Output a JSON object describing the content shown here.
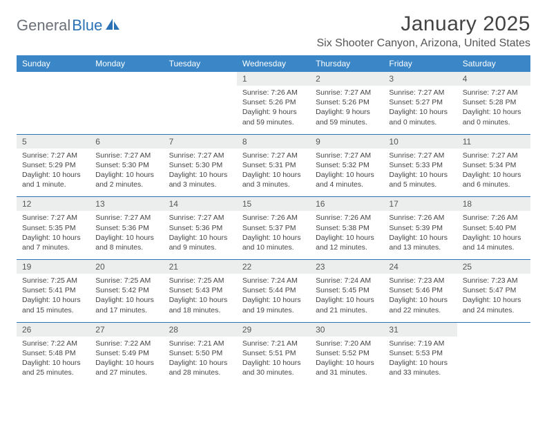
{
  "colors": {
    "header_bg": "#3b86c6",
    "header_text": "#ffffff",
    "daynum_bg": "#eceeee",
    "daynum_text": "#555555",
    "detail_text": "#444444",
    "week_separator": "#2a72b5",
    "logo_gray": "#6b7078",
    "logo_blue": "#2a72b5",
    "page_bg": "#ffffff"
  },
  "typography": {
    "title_fontsize": 30,
    "location_fontsize": 16,
    "dayhdr_fontsize": 12,
    "daynum_fontsize": 12,
    "detail_fontsize": 10.5
  },
  "logo": {
    "part1": "General",
    "part2": "Blue"
  },
  "title": "January 2025",
  "location": "Six Shooter Canyon, Arizona, United States",
  "day_headers": [
    "Sunday",
    "Monday",
    "Tuesday",
    "Wednesday",
    "Thursday",
    "Friday",
    "Saturday"
  ],
  "weeks": [
    [
      null,
      null,
      null,
      {
        "n": "1",
        "sr": "Sunrise: 7:26 AM",
        "ss": "Sunset: 5:26 PM",
        "d1": "Daylight: 9 hours",
        "d2": "and 59 minutes."
      },
      {
        "n": "2",
        "sr": "Sunrise: 7:27 AM",
        "ss": "Sunset: 5:26 PM",
        "d1": "Daylight: 9 hours",
        "d2": "and 59 minutes."
      },
      {
        "n": "3",
        "sr": "Sunrise: 7:27 AM",
        "ss": "Sunset: 5:27 PM",
        "d1": "Daylight: 10 hours",
        "d2": "and 0 minutes."
      },
      {
        "n": "4",
        "sr": "Sunrise: 7:27 AM",
        "ss": "Sunset: 5:28 PM",
        "d1": "Daylight: 10 hours",
        "d2": "and 0 minutes."
      }
    ],
    [
      {
        "n": "5",
        "sr": "Sunrise: 7:27 AM",
        "ss": "Sunset: 5:29 PM",
        "d1": "Daylight: 10 hours",
        "d2": "and 1 minute."
      },
      {
        "n": "6",
        "sr": "Sunrise: 7:27 AM",
        "ss": "Sunset: 5:30 PM",
        "d1": "Daylight: 10 hours",
        "d2": "and 2 minutes."
      },
      {
        "n": "7",
        "sr": "Sunrise: 7:27 AM",
        "ss": "Sunset: 5:30 PM",
        "d1": "Daylight: 10 hours",
        "d2": "and 3 minutes."
      },
      {
        "n": "8",
        "sr": "Sunrise: 7:27 AM",
        "ss": "Sunset: 5:31 PM",
        "d1": "Daylight: 10 hours",
        "d2": "and 3 minutes."
      },
      {
        "n": "9",
        "sr": "Sunrise: 7:27 AM",
        "ss": "Sunset: 5:32 PM",
        "d1": "Daylight: 10 hours",
        "d2": "and 4 minutes."
      },
      {
        "n": "10",
        "sr": "Sunrise: 7:27 AM",
        "ss": "Sunset: 5:33 PM",
        "d1": "Daylight: 10 hours",
        "d2": "and 5 minutes."
      },
      {
        "n": "11",
        "sr": "Sunrise: 7:27 AM",
        "ss": "Sunset: 5:34 PM",
        "d1": "Daylight: 10 hours",
        "d2": "and 6 minutes."
      }
    ],
    [
      {
        "n": "12",
        "sr": "Sunrise: 7:27 AM",
        "ss": "Sunset: 5:35 PM",
        "d1": "Daylight: 10 hours",
        "d2": "and 7 minutes."
      },
      {
        "n": "13",
        "sr": "Sunrise: 7:27 AM",
        "ss": "Sunset: 5:36 PM",
        "d1": "Daylight: 10 hours",
        "d2": "and 8 minutes."
      },
      {
        "n": "14",
        "sr": "Sunrise: 7:27 AM",
        "ss": "Sunset: 5:36 PM",
        "d1": "Daylight: 10 hours",
        "d2": "and 9 minutes."
      },
      {
        "n": "15",
        "sr": "Sunrise: 7:26 AM",
        "ss": "Sunset: 5:37 PM",
        "d1": "Daylight: 10 hours",
        "d2": "and 10 minutes."
      },
      {
        "n": "16",
        "sr": "Sunrise: 7:26 AM",
        "ss": "Sunset: 5:38 PM",
        "d1": "Daylight: 10 hours",
        "d2": "and 12 minutes."
      },
      {
        "n": "17",
        "sr": "Sunrise: 7:26 AM",
        "ss": "Sunset: 5:39 PM",
        "d1": "Daylight: 10 hours",
        "d2": "and 13 minutes."
      },
      {
        "n": "18",
        "sr": "Sunrise: 7:26 AM",
        "ss": "Sunset: 5:40 PM",
        "d1": "Daylight: 10 hours",
        "d2": "and 14 minutes."
      }
    ],
    [
      {
        "n": "19",
        "sr": "Sunrise: 7:25 AM",
        "ss": "Sunset: 5:41 PM",
        "d1": "Daylight: 10 hours",
        "d2": "and 15 minutes."
      },
      {
        "n": "20",
        "sr": "Sunrise: 7:25 AM",
        "ss": "Sunset: 5:42 PM",
        "d1": "Daylight: 10 hours",
        "d2": "and 17 minutes."
      },
      {
        "n": "21",
        "sr": "Sunrise: 7:25 AM",
        "ss": "Sunset: 5:43 PM",
        "d1": "Daylight: 10 hours",
        "d2": "and 18 minutes."
      },
      {
        "n": "22",
        "sr": "Sunrise: 7:24 AM",
        "ss": "Sunset: 5:44 PM",
        "d1": "Daylight: 10 hours",
        "d2": "and 19 minutes."
      },
      {
        "n": "23",
        "sr": "Sunrise: 7:24 AM",
        "ss": "Sunset: 5:45 PM",
        "d1": "Daylight: 10 hours",
        "d2": "and 21 minutes."
      },
      {
        "n": "24",
        "sr": "Sunrise: 7:23 AM",
        "ss": "Sunset: 5:46 PM",
        "d1": "Daylight: 10 hours",
        "d2": "and 22 minutes."
      },
      {
        "n": "25",
        "sr": "Sunrise: 7:23 AM",
        "ss": "Sunset: 5:47 PM",
        "d1": "Daylight: 10 hours",
        "d2": "and 24 minutes."
      }
    ],
    [
      {
        "n": "26",
        "sr": "Sunrise: 7:22 AM",
        "ss": "Sunset: 5:48 PM",
        "d1": "Daylight: 10 hours",
        "d2": "and 25 minutes."
      },
      {
        "n": "27",
        "sr": "Sunrise: 7:22 AM",
        "ss": "Sunset: 5:49 PM",
        "d1": "Daylight: 10 hours",
        "d2": "and 27 minutes."
      },
      {
        "n": "28",
        "sr": "Sunrise: 7:21 AM",
        "ss": "Sunset: 5:50 PM",
        "d1": "Daylight: 10 hours",
        "d2": "and 28 minutes."
      },
      {
        "n": "29",
        "sr": "Sunrise: 7:21 AM",
        "ss": "Sunset: 5:51 PM",
        "d1": "Daylight: 10 hours",
        "d2": "and 30 minutes."
      },
      {
        "n": "30",
        "sr": "Sunrise: 7:20 AM",
        "ss": "Sunset: 5:52 PM",
        "d1": "Daylight: 10 hours",
        "d2": "and 31 minutes."
      },
      {
        "n": "31",
        "sr": "Sunrise: 7:19 AM",
        "ss": "Sunset: 5:53 PM",
        "d1": "Daylight: 10 hours",
        "d2": "and 33 minutes."
      },
      null
    ]
  ]
}
